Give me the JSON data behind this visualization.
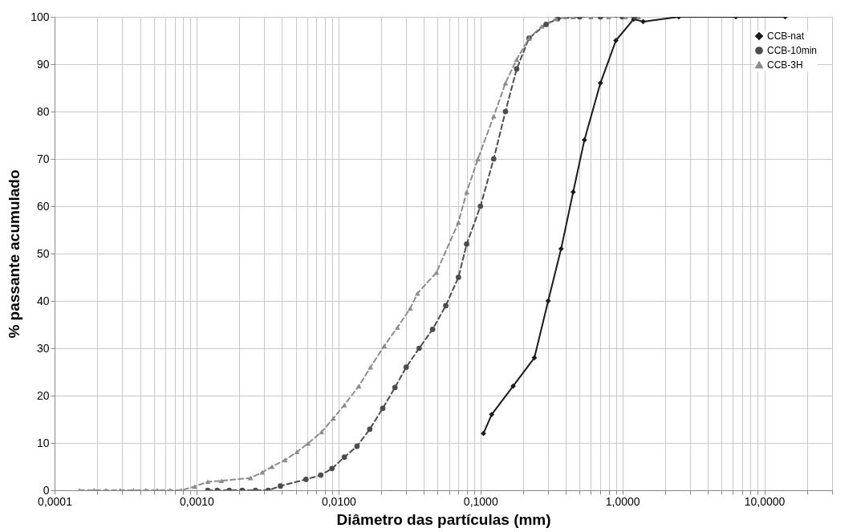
{
  "chart_data": {
    "type": "line",
    "xlabel": "Diâmetro das partículas (mm)",
    "ylabel": "% passante acumulado",
    "log": "x",
    "grid": true,
    "legend": "top right",
    "xlim": [
      0.0001,
      30
    ],
    "ylim": [
      0,
      100
    ],
    "xticks": [
      {
        "value": 0.0001,
        "label": "0,0001"
      },
      {
        "value": 0.0002,
        "label": null
      },
      {
        "value": 0.0003,
        "label": null
      },
      {
        "value": 0.0004,
        "label": null
      },
      {
        "value": 0.0005,
        "label": null
      },
      {
        "value": 0.0006,
        "label": null
      },
      {
        "value": 0.0007,
        "label": null
      },
      {
        "value": 0.0008,
        "label": null
      },
      {
        "value": 0.0009,
        "label": null
      },
      {
        "value": 0.001,
        "label": "0,0010"
      },
      {
        "value": 0.002,
        "label": null
      },
      {
        "value": 0.003,
        "label": null
      },
      {
        "value": 0.004,
        "label": null
      },
      {
        "value": 0.005,
        "label": null
      },
      {
        "value": 0.006,
        "label": null
      },
      {
        "value": 0.007,
        "label": null
      },
      {
        "value": 0.008,
        "label": null
      },
      {
        "value": 0.009,
        "label": null
      },
      {
        "value": 0.01,
        "label": "0,0100"
      },
      {
        "value": 0.02,
        "label": null
      },
      {
        "value": 0.03,
        "label": null
      },
      {
        "value": 0.04,
        "label": null
      },
      {
        "value": 0.05,
        "label": null
      },
      {
        "value": 0.06,
        "label": null
      },
      {
        "value": 0.07,
        "label": null
      },
      {
        "value": 0.08,
        "label": null
      },
      {
        "value": 0.09,
        "label": null
      },
      {
        "value": 0.1,
        "label": "0,1000"
      },
      {
        "value": 0.2,
        "label": null
      },
      {
        "value": 0.3,
        "label": null
      },
      {
        "value": 0.4,
        "label": null
      },
      {
        "value": 0.5,
        "label": null
      },
      {
        "value": 0.6,
        "label": null
      },
      {
        "value": 0.7,
        "label": null
      },
      {
        "value": 0.8,
        "label": null
      },
      {
        "value": 0.9,
        "label": null
      },
      {
        "value": 1,
        "label": "1,0000"
      },
      {
        "value": 2,
        "label": null
      },
      {
        "value": 3,
        "label": null
      },
      {
        "value": 4,
        "label": null
      },
      {
        "value": 5,
        "label": null
      },
      {
        "value": 6,
        "label": null
      },
      {
        "value": 7,
        "label": null
      },
      {
        "value": 8,
        "label": null
      },
      {
        "value": 9,
        "label": null
      },
      {
        "value": 10,
        "label": "10,0000"
      },
      {
        "value": 20,
        "label": null
      },
      {
        "value": 30,
        "label": null
      }
    ],
    "yticks": [
      0,
      10,
      20,
      30,
      40,
      50,
      60,
      70,
      80,
      90,
      100
    ],
    "series": [
      {
        "name": "CCB-nat",
        "color": "#1a1a1a",
        "marker": "diamond",
        "line_style": "solid",
        "x": [
          0.105,
          0.12,
          0.17,
          0.24,
          0.3,
          0.37,
          0.45,
          0.54,
          0.7,
          0.9,
          1.2,
          1.4,
          2.5,
          6.3,
          14
        ],
        "values": [
          12,
          16,
          22,
          28,
          40,
          51,
          63,
          74,
          86,
          95,
          99.5,
          99,
          100,
          100,
          100
        ]
      },
      {
        "name": "CCB-10min",
        "color": "#4d4d4d",
        "marker": "circle",
        "line_style": "dashed",
        "x": [
          0.0012,
          0.0014,
          0.0017,
          0.0021,
          0.0026,
          0.0032,
          0.0039,
          0.0059,
          0.0075,
          0.009,
          0.011,
          0.0135,
          0.0166,
          0.0205,
          0.025,
          0.03,
          0.037,
          0.046,
          0.057,
          0.07,
          0.08,
          0.1,
          0.124,
          0.15,
          0.18,
          0.22,
          0.29,
          0.35,
          0.5,
          0.7,
          1,
          1.23
        ],
        "values": [
          0,
          0,
          0,
          0,
          0,
          0,
          0.9,
          2.3,
          3.2,
          4.6,
          7,
          9.3,
          12.9,
          17.3,
          21.7,
          26,
          30,
          34,
          39,
          45,
          52,
          60,
          70,
          80,
          89,
          95.5,
          98.4,
          99.6,
          100,
          100,
          100,
          100
        ]
      },
      {
        "name": "CCB-3H",
        "color": "#8c8c8c",
        "marker": "triangle",
        "line_style": "dashed",
        "x": [
          0.00015,
          0.00019,
          0.00023,
          0.00029,
          0.00036,
          0.00044,
          0.00053,
          0.00065,
          0.00078,
          0.00097,
          0.0012,
          0.0015,
          0.0024,
          0.0029,
          0.0034,
          0.0042,
          0.0051,
          0.0061,
          0.0076,
          0.0092,
          0.011,
          0.0139,
          0.0168,
          0.021,
          0.026,
          0.032,
          0.036,
          0.049,
          0.07,
          0.08,
          0.096,
          0.124,
          0.15,
          0.18,
          0.22,
          0.27,
          0.34,
          0.45,
          0.6,
          0.8,
          1.05,
          1.3
        ],
        "values": [
          0,
          0,
          0,
          0,
          0,
          0,
          0,
          0,
          0,
          0.8,
          1.8,
          2,
          2.6,
          3.8,
          5,
          6.4,
          8.1,
          9.9,
          12.3,
          15.2,
          18,
          22,
          26,
          30.5,
          34.4,
          38.4,
          41.6,
          46,
          56.6,
          63,
          70,
          79,
          86,
          91,
          95.5,
          98,
          99.6,
          100,
          100,
          100,
          100,
          100
        ]
      }
    ]
  }
}
